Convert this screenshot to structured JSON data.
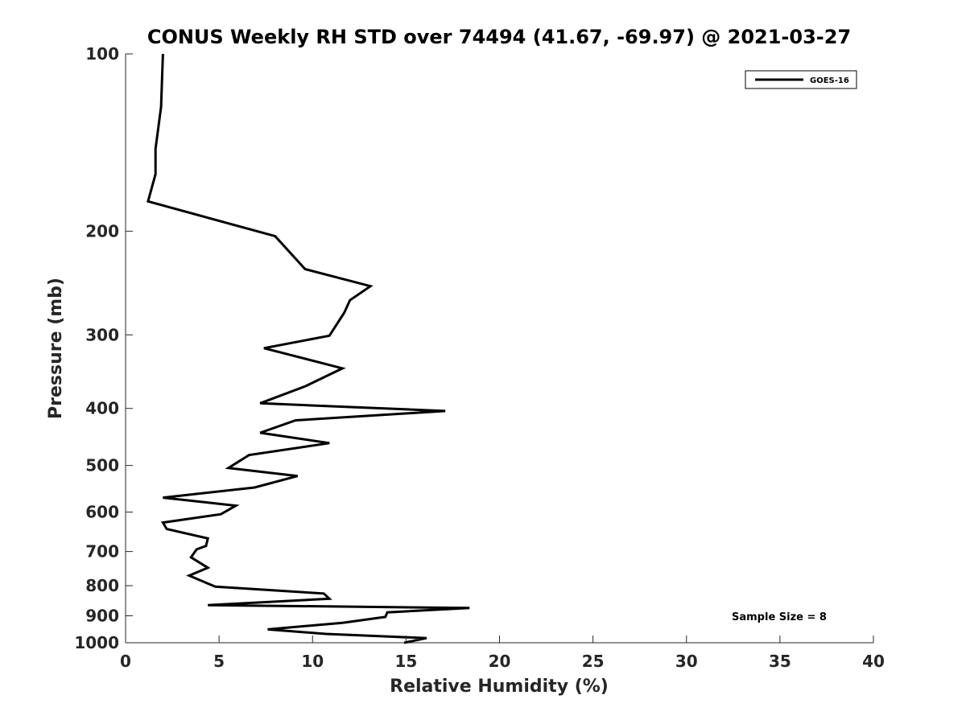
{
  "chart_data": {
    "type": "line",
    "title": "CONUS Weekly RH STD over 74494 (41.67, -69.97) @ 2021-03-27",
    "xlabel": "Relative Humidity (%)",
    "ylabel": "Pressure (mb)",
    "xlim": [
      0,
      40
    ],
    "ylim": [
      100,
      1000
    ],
    "y_scale": "log",
    "y_reversed": true,
    "x_ticks": [
      0,
      5,
      10,
      15,
      20,
      25,
      30,
      35,
      40
    ],
    "y_ticks": [
      100,
      200,
      300,
      400,
      500,
      600,
      700,
      800,
      900,
      1000
    ],
    "grid": false,
    "legend_position": "top-right",
    "series": [
      {
        "name": "GOES-16",
        "color": "#000000",
        "x": [
          2.0,
          1.9,
          1.6,
          1.6,
          1.2,
          8.0,
          9.6,
          13.1,
          12.0,
          11.7,
          10.9,
          7.4,
          11.6,
          9.6,
          7.2,
          17.1,
          9.1,
          7.2,
          10.9,
          6.6,
          5.5,
          9.2,
          6.9,
          2.0,
          5.9,
          5.1,
          2.0,
          2.2,
          4.4,
          4.3,
          3.8,
          3.5,
          4.4,
          3.4,
          4.8,
          10.6,
          10.9,
          4.4,
          18.4,
          14.0,
          13.9,
          11.6,
          7.6,
          10.7,
          16.1,
          14.9
        ],
        "y": [
          100,
          123,
          145,
          160,
          178,
          204,
          232,
          248,
          262,
          275,
          301,
          316,
          342,
          367,
          392,
          404,
          419,
          440,
          458,
          480,
          505,
          521,
          545,
          567,
          585,
          605,
          625,
          641,
          665,
          685,
          694,
          716,
          746,
          769,
          803,
          825,
          842,
          863,
          873,
          888,
          904,
          925,
          949,
          966,
          982,
          1000
        ]
      }
    ],
    "annotations": [
      "Sample Size = 8"
    ]
  }
}
